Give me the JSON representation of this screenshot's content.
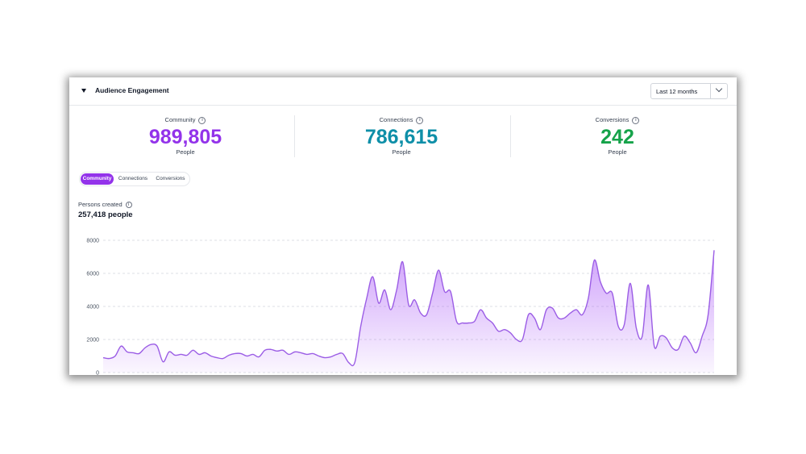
{
  "panel": {
    "title": "Audience Engagement",
    "range": {
      "selected": "Last 12 months"
    }
  },
  "stats": [
    {
      "label": "Community",
      "value": "989,805",
      "unit": "People",
      "color": "#9333ea"
    },
    {
      "label": "Connections",
      "value": "786,615",
      "unit": "People",
      "color": "#0e8fa8"
    },
    {
      "label": "Conversions",
      "value": "242",
      "unit": "People",
      "color": "#16a34a"
    }
  ],
  "tabs": [
    {
      "label": "Community",
      "active": true
    },
    {
      "label": "Connections",
      "active": false
    },
    {
      "label": "Conversions",
      "active": false
    }
  ],
  "metric": {
    "label": "Persons created",
    "value": "257,418 people"
  },
  "icons": {
    "toggle": "caret-down-icon",
    "select": "chevron-down-icon",
    "info": "info-icon"
  },
  "chart_data": {
    "type": "area",
    "title": "",
    "xlabel": "",
    "ylabel": "",
    "ylim": [
      0,
      8000
    ],
    "yticks": [
      0,
      2000,
      4000,
      6000,
      8000
    ],
    "grid": true,
    "color": "#9b5de5",
    "series": [
      {
        "values": [
          900,
          850,
          1000,
          1600,
          1250,
          1200,
          1150,
          1500,
          1700,
          1600,
          650,
          1250,
          1050,
          1100,
          1050,
          1350,
          1100,
          1200,
          1000,
          900,
          850,
          1050,
          1150,
          1150,
          1000,
          1100,
          950,
          1350,
          1400,
          1300,
          1350,
          1100,
          1250,
          1200,
          1100,
          1150,
          1000,
          900,
          950,
          1100,
          1150,
          600,
          600,
          2800,
          4500,
          5800,
          4200,
          5000,
          3800,
          5000,
          6700,
          4100,
          4400,
          3600,
          3500,
          4800,
          6200,
          4900,
          4900,
          3100,
          3000,
          3000,
          3100,
          3800,
          3300,
          3000,
          2500,
          2600,
          2400,
          2000,
          2000,
          3500,
          3300,
          2600,
          3800,
          3900,
          3300,
          3300,
          3600,
          3800,
          3500,
          4500,
          6800,
          5500,
          4800,
          4800,
          2800,
          2900,
          5400,
          2700,
          2200,
          5300,
          1600,
          2200,
          2100,
          1500,
          1400,
          2200,
          1800,
          1200,
          2200,
          3500,
          7400
        ]
      }
    ]
  }
}
